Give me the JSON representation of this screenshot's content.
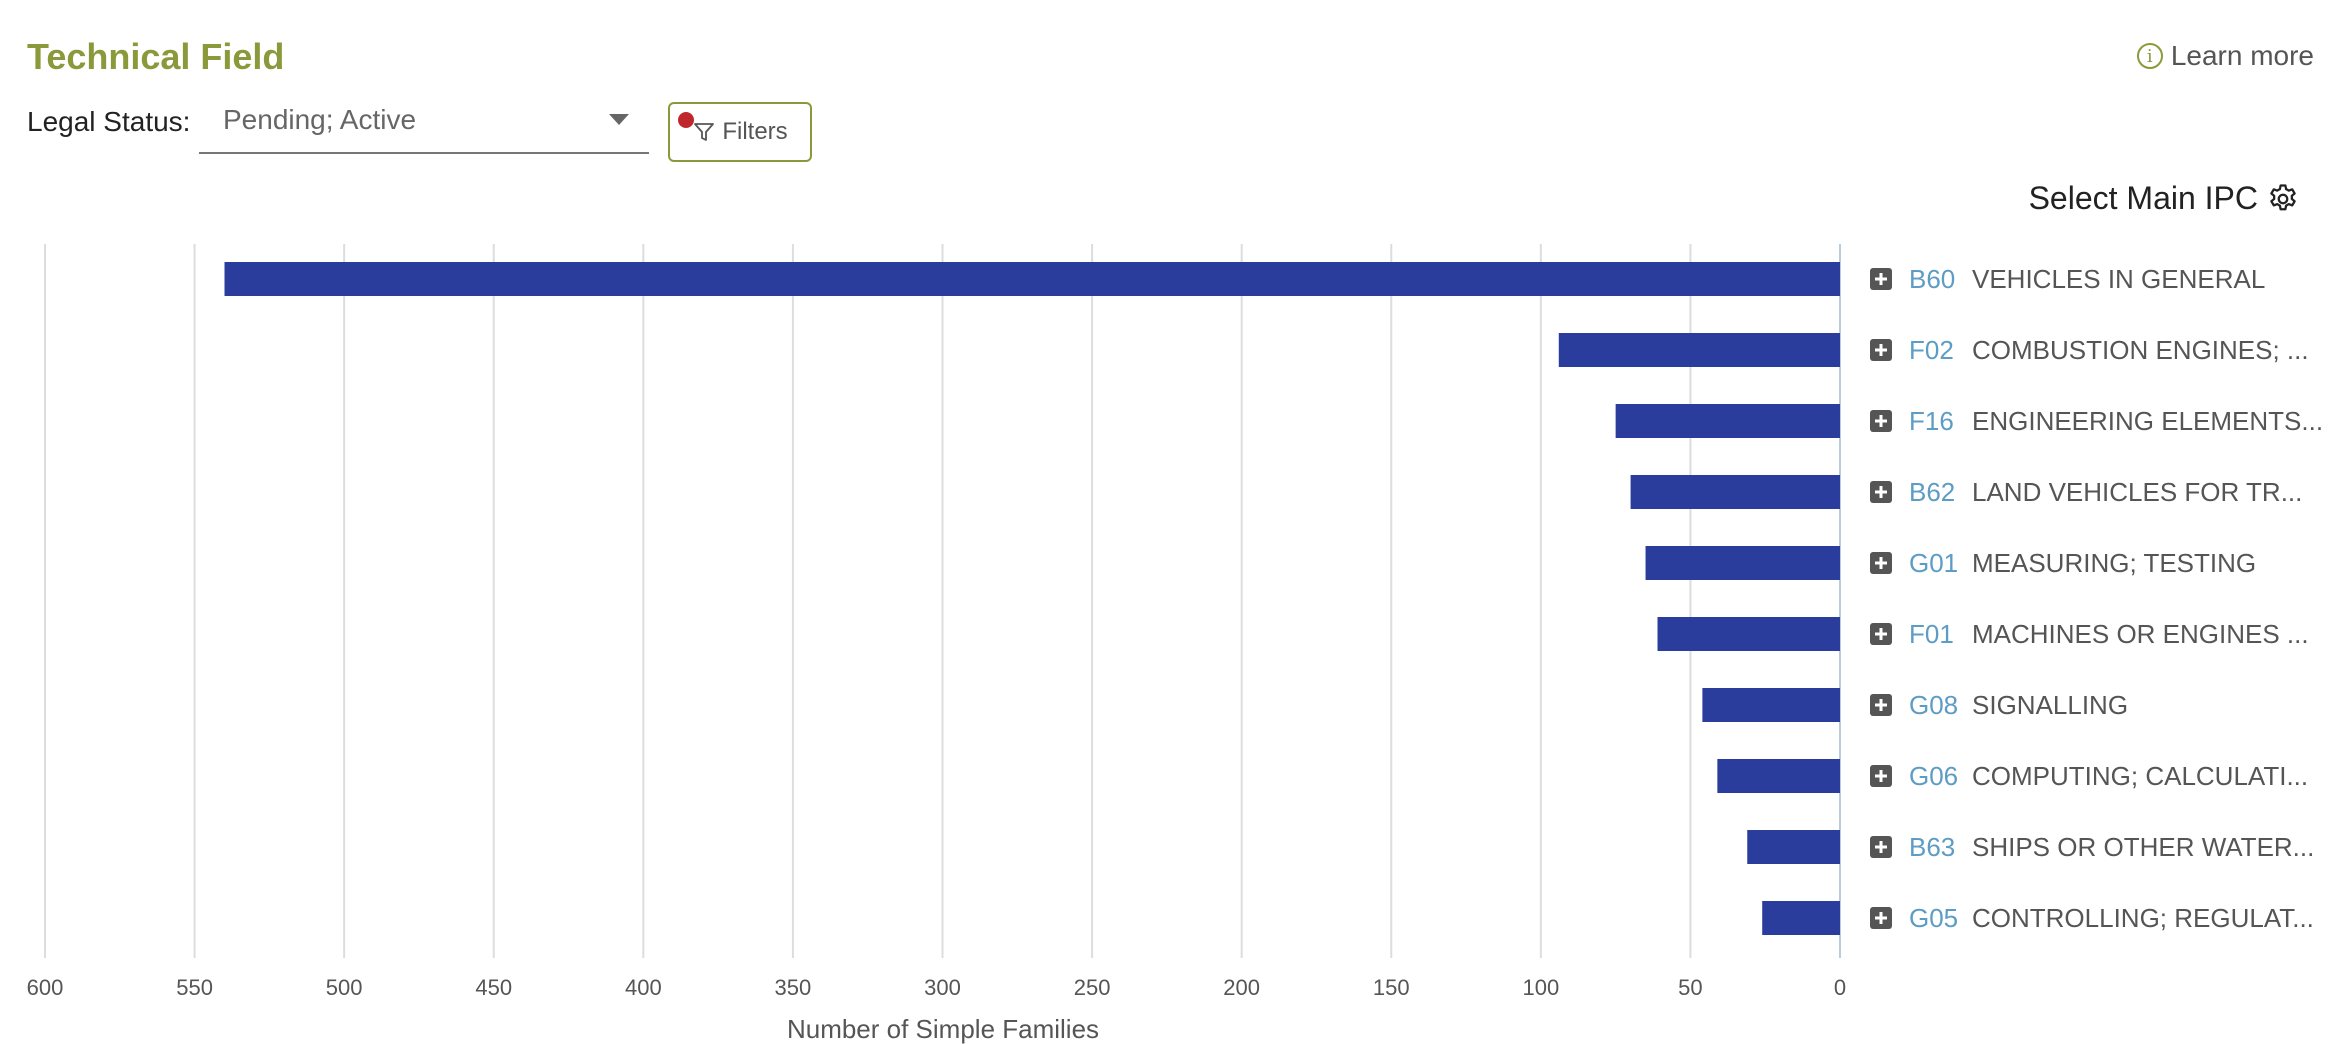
{
  "header": {
    "title": "Technical Field",
    "learn_more": "Learn more",
    "legal_status_label": "Legal Status:",
    "legal_status_value": "Pending; Active",
    "filters_label": "Filters",
    "select_main_ipc": "Select Main IPC"
  },
  "colors": {
    "bar": "#2b3d9c",
    "accent": "#8a9a3b",
    "code": "#5d9cc4",
    "filter_dot": "#c0272d"
  },
  "chart_data": {
    "type": "bar",
    "orientation": "horizontal",
    "xaxis_reversed": true,
    "xlabel": "Number of Simple Families",
    "xlim": [
      0,
      600
    ],
    "xticks": [
      600,
      550,
      500,
      450,
      400,
      350,
      300,
      250,
      200,
      150,
      100,
      50,
      0
    ],
    "grid": true,
    "categories": [
      {
        "code": "B60",
        "label": "VEHICLES IN GENERAL"
      },
      {
        "code": "F02",
        "label": "COMBUSTION ENGINES; ..."
      },
      {
        "code": "F16",
        "label": "ENGINEERING ELEMENTS..."
      },
      {
        "code": "B62",
        "label": "LAND VEHICLES FOR TR..."
      },
      {
        "code": "G01",
        "label": "MEASURING; TESTING"
      },
      {
        "code": "F01",
        "label": "MACHINES OR ENGINES ..."
      },
      {
        "code": "G08",
        "label": "SIGNALLING"
      },
      {
        "code": "G06",
        "label": "COMPUTING; CALCULATI..."
      },
      {
        "code": "B63",
        "label": "SHIPS OR OTHER WATER..."
      },
      {
        "code": "G05",
        "label": "CONTROLLING; REGULAT..."
      }
    ],
    "values": [
      540,
      94,
      75,
      70,
      65,
      61,
      46,
      41,
      31,
      26
    ]
  }
}
